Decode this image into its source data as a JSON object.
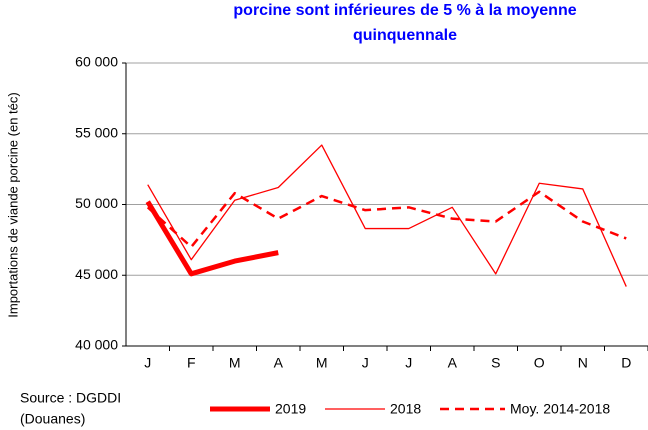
{
  "chart_data": {
    "type": "line",
    "title_lines": [
      "porcine sont inférieures de 5 % à la moyenne",
      "quinquennale"
    ],
    "y_label": "Importations de viande porcine (en téc)",
    "source_lines": [
      "Source : DGDDI",
      "(Douanes)"
    ],
    "categories": [
      "J",
      "F",
      "M",
      "A",
      "M",
      "J",
      "J",
      "A",
      "S",
      "O",
      "N",
      "D"
    ],
    "series": [
      {
        "name": "2019",
        "color": "#ff0000",
        "width": 5,
        "dash": "none",
        "values": [
          50200,
          45100,
          46000,
          46600,
          null,
          null,
          null,
          null,
          null,
          null,
          null,
          null
        ]
      },
      {
        "name": "2018",
        "color": "#ff0000",
        "width": 1.3,
        "dash": "none",
        "values": [
          51400,
          46100,
          50300,
          51200,
          54200,
          48300,
          48300,
          49800,
          45100,
          51500,
          51100,
          44200
        ]
      },
      {
        "name": "Moy. 2014-2018",
        "color": "#ff0000",
        "width": 2.5,
        "dash": "9 6",
        "values": [
          49800,
          47000,
          50800,
          49000,
          50600,
          49600,
          49800,
          49000,
          48800,
          50900,
          48800,
          47600
        ]
      }
    ],
    "ylim": [
      40000,
      60000
    ],
    "yticks": [
      {
        "value": 40000,
        "label": "40 000"
      },
      {
        "value": 45000,
        "label": "45 000"
      },
      {
        "value": 50000,
        "label": "50 000"
      },
      {
        "value": 55000,
        "label": "55 000"
      },
      {
        "value": 60000,
        "label": "60 000"
      }
    ],
    "grid": true
  }
}
